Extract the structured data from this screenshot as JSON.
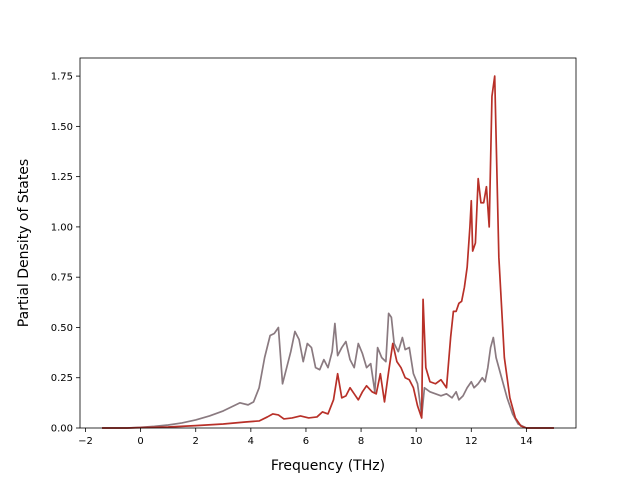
{
  "chart_data": {
    "type": "line",
    "title": "",
    "xlabel": "Frequency (THz)",
    "ylabel": "Partial Density of States",
    "xlim": [
      -2.2,
      15.8
    ],
    "ylim": [
      0,
      1.84
    ],
    "xticks": [
      -2,
      0,
      2,
      4,
      6,
      8,
      10,
      12,
      14
    ],
    "xtick_labels": [
      "−2",
      "0",
      "2",
      "4",
      "6",
      "8",
      "10",
      "12",
      "14"
    ],
    "yticks": [
      0,
      0.25,
      0.5,
      0.75,
      1.0,
      1.25,
      1.5,
      1.75
    ],
    "ytick_labels": [
      "0.00",
      "0.25",
      "0.50",
      "0.75",
      "1.00",
      "1.25",
      "1.50",
      "1.75"
    ],
    "grid": false,
    "legend": "none",
    "series": [
      {
        "color": "#8a7a80",
        "x": [
          -1.4,
          -0.5,
          0,
          0.5,
          1,
          1.5,
          2,
          2.5,
          3,
          3.3,
          3.6,
          3.9,
          4.1,
          4.3,
          4.5,
          4.7,
          4.85,
          5.0,
          5.15,
          5.3,
          5.45,
          5.6,
          5.75,
          5.9,
          6.05,
          6.2,
          6.35,
          6.5,
          6.65,
          6.8,
          6.95,
          7.05,
          7.15,
          7.3,
          7.45,
          7.6,
          7.75,
          7.9,
          8.05,
          8.2,
          8.35,
          8.5,
          8.6,
          8.75,
          8.9,
          9.0,
          9.1,
          9.2,
          9.35,
          9.5,
          9.6,
          9.75,
          9.9,
          10.05,
          10.2,
          10.3,
          10.5,
          10.7,
          10.9,
          11.1,
          11.3,
          11.45,
          11.55,
          11.7,
          11.85,
          12.0,
          12.1,
          12.25,
          12.4,
          12.5,
          12.6,
          12.7,
          12.8,
          12.9,
          13.1,
          13.3,
          13.5,
          13.7,
          14.0,
          15.0
        ],
        "y": [
          0,
          0,
          0.003,
          0.008,
          0.015,
          0.025,
          0.04,
          0.06,
          0.085,
          0.105,
          0.125,
          0.115,
          0.13,
          0.2,
          0.35,
          0.46,
          0.47,
          0.5,
          0.22,
          0.3,
          0.38,
          0.48,
          0.44,
          0.33,
          0.42,
          0.4,
          0.3,
          0.29,
          0.34,
          0.3,
          0.38,
          0.52,
          0.36,
          0.4,
          0.43,
          0.34,
          0.3,
          0.42,
          0.37,
          0.3,
          0.32,
          0.18,
          0.4,
          0.35,
          0.33,
          0.57,
          0.55,
          0.42,
          0.38,
          0.45,
          0.39,
          0.4,
          0.27,
          0.22,
          0.06,
          0.2,
          0.18,
          0.17,
          0.16,
          0.17,
          0.15,
          0.18,
          0.14,
          0.16,
          0.2,
          0.23,
          0.2,
          0.22,
          0.25,
          0.23,
          0.3,
          0.4,
          0.45,
          0.35,
          0.25,
          0.15,
          0.07,
          0.02,
          0,
          0
        ]
      },
      {
        "color": "#b83028",
        "x": [
          -1.4,
          -0.5,
          0,
          1,
          2,
          3,
          3.8,
          4.3,
          4.6,
          4.8,
          5.0,
          5.2,
          5.5,
          5.8,
          6.1,
          6.4,
          6.6,
          6.8,
          7.0,
          7.15,
          7.3,
          7.45,
          7.6,
          7.75,
          7.9,
          8.05,
          8.2,
          8.4,
          8.55,
          8.7,
          8.85,
          9.0,
          9.15,
          9.3,
          9.45,
          9.6,
          9.75,
          9.9,
          10.05,
          10.15,
          10.2,
          10.25,
          10.35,
          10.5,
          10.7,
          10.9,
          11.1,
          11.25,
          11.35,
          11.45,
          11.55,
          11.65,
          11.75,
          11.85,
          11.95,
          12.0,
          12.05,
          12.15,
          12.25,
          12.35,
          12.45,
          12.55,
          12.65,
          12.75,
          12.85,
          13.0,
          13.2,
          13.4,
          13.6,
          13.8,
          14.0,
          15.0
        ],
        "y": [
          0,
          0,
          0.002,
          0.005,
          0.012,
          0.02,
          0.03,
          0.035,
          0.055,
          0.07,
          0.065,
          0.045,
          0.05,
          0.06,
          0.05,
          0.055,
          0.08,
          0.07,
          0.14,
          0.27,
          0.15,
          0.16,
          0.2,
          0.17,
          0.14,
          0.18,
          0.21,
          0.18,
          0.17,
          0.27,
          0.13,
          0.28,
          0.42,
          0.33,
          0.3,
          0.25,
          0.24,
          0.2,
          0.11,
          0.07,
          0.05,
          0.64,
          0.3,
          0.23,
          0.22,
          0.24,
          0.2,
          0.45,
          0.58,
          0.58,
          0.62,
          0.63,
          0.7,
          0.8,
          1.0,
          1.13,
          0.88,
          0.92,
          1.24,
          1.12,
          1.12,
          1.2,
          1.0,
          1.65,
          1.75,
          0.85,
          0.35,
          0.15,
          0.05,
          0.01,
          0,
          0
        ]
      }
    ]
  }
}
